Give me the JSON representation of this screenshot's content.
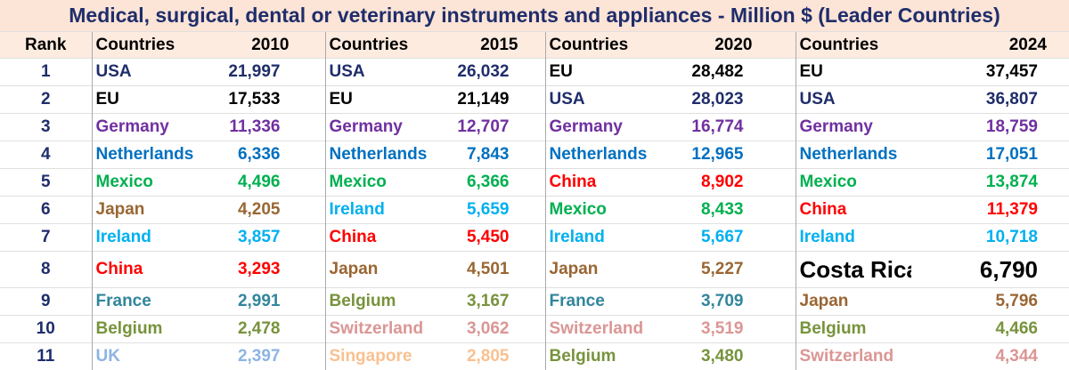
{
  "title": "Medical, surgical, dental or veterinary instruments and appliances - Million $ (Leader Countries)",
  "table": {
    "header": [
      "Rank",
      "Countries",
      "2010",
      "Countries",
      "2015",
      "Countries",
      "2020",
      "Countries",
      "2024"
    ],
    "rows": [
      [
        "1",
        "USA",
        "21,997",
        "USA",
        "26,032",
        "EU",
        "28,482",
        "EU",
        "37,457"
      ],
      [
        "2",
        "EU",
        "17,533",
        "EU",
        "21,149",
        "USA",
        "28,023",
        "USA",
        "36,807"
      ],
      [
        "3",
        "Germany",
        "11,336",
        "Germany",
        "12,707",
        "Germany",
        "16,774",
        "Germany",
        "18,759"
      ],
      [
        "4",
        "Netherlands",
        "6,336",
        "Netherlands",
        "7,843",
        "Netherlands",
        "12,965",
        "Netherlands",
        "17,051"
      ],
      [
        "5",
        "Mexico",
        "4,496",
        "Mexico",
        "6,366",
        "China",
        "8,902",
        "Mexico",
        "13,874"
      ],
      [
        "6",
        "Japan",
        "4,205",
        "Ireland",
        "5,659",
        "Mexico",
        "8,433",
        "China",
        "11,379"
      ],
      [
        "7",
        "Ireland",
        "3,857",
        "China",
        "5,450",
        "Ireland",
        "5,667",
        "Ireland",
        "10,718"
      ],
      [
        "8",
        "China",
        "3,293",
        "Japan",
        "4,501",
        "Japan",
        "5,227",
        "Costa Rica",
        "6,790"
      ],
      [
        "9",
        "France",
        "2,991",
        "Belgium",
        "3,167",
        "France",
        "3,709",
        "Japan",
        "5,796"
      ],
      [
        "10",
        "Belgium",
        "2,478",
        "Switzerland",
        "3,062",
        "Switzerland",
        "3,519",
        "Belgium",
        "4,466"
      ],
      [
        "11",
        "UK",
        "2,397",
        "Singapore",
        "2,805",
        "Belgium",
        "3,480",
        "Switzerland",
        "4,344"
      ]
    ],
    "row_colors": [
      [
        "#1f2d6b",
        "#1f2d6b",
        "#000000",
        "#000000"
      ],
      [
        "#000000",
        "#000000",
        "#1f2d6b",
        "#1f2d6b"
      ],
      [
        "#7030a0",
        "#7030a0",
        "#7030a0",
        "#7030a0"
      ],
      [
        "#0070c0",
        "#0070c0",
        "#0070c0",
        "#0070c0"
      ],
      [
        "#00b050",
        "#00b050",
        "#ff0000",
        "#00b050"
      ],
      [
        "#996633",
        "#00b0f0",
        "#00b050",
        "#ff0000"
      ],
      [
        "#00b0f0",
        "#ff0000",
        "#00b0f0",
        "#00b0f0"
      ],
      [
        "#ff0000",
        "#996633",
        "#996633",
        "#000000"
      ],
      [
        "#31869b",
        "#77933c",
        "#31869b",
        "#996633"
      ],
      [
        "#77933c",
        "#da9694",
        "#da9694",
        "#77933c"
      ],
      [
        "#8db4e2",
        "#fac090",
        "#77933c",
        "#da9694"
      ]
    ],
    "emphasized_cell": {
      "row": 7,
      "group": 3
    }
  }
}
